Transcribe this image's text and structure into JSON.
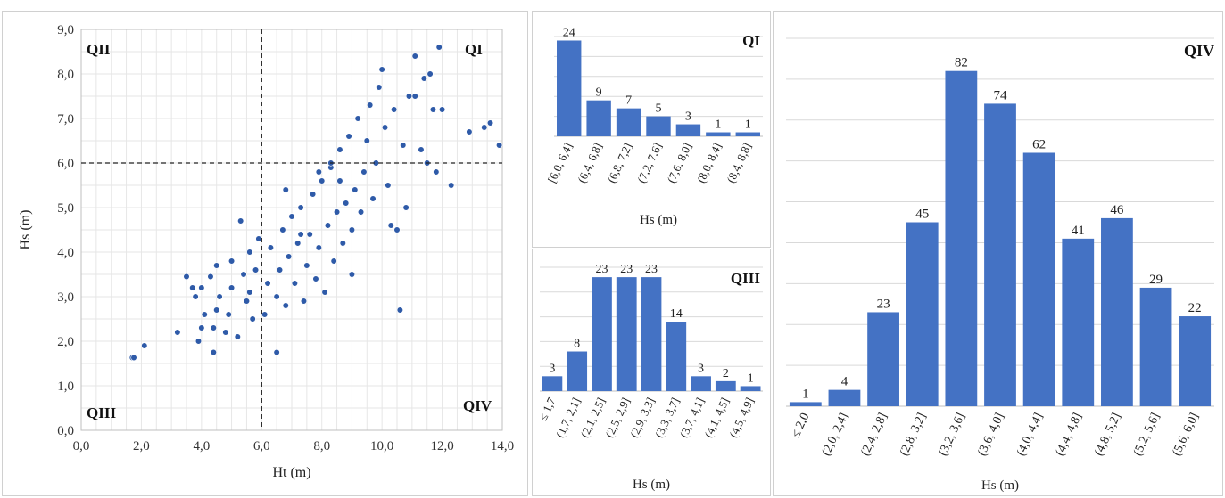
{
  "chart_data": [
    {
      "type": "scatter",
      "xlabel": "Ht (m)",
      "ylabel": "Hs (m)",
      "xlim": [
        0,
        14
      ],
      "ylim": [
        0,
        9
      ],
      "xticks": [
        "0,0",
        "2,0",
        "4,0",
        "6,0",
        "8,0",
        "10,0",
        "12,0",
        "14,0"
      ],
      "yticks": [
        "0,0",
        "1,0",
        "2,0",
        "3,0",
        "4,0",
        "5,0",
        "6,0",
        "7,0",
        "8,0",
        "9,0"
      ],
      "quadrant_labels": {
        "top_left": "QII",
        "top_right": "QI",
        "bottom_left": "QIII",
        "bottom_right": "QIV"
      },
      "threshold_x": 6.0,
      "threshold_y": 6.0,
      "grid": true,
      "marker_color": "#2e5aa8",
      "points": [
        [
          1.7,
          1.63
        ],
        [
          1.75,
          1.63
        ],
        [
          2.1,
          1.9
        ],
        [
          3.2,
          2.2
        ],
        [
          3.5,
          3.45
        ],
        [
          3.7,
          3.2
        ],
        [
          3.8,
          3.0
        ],
        [
          3.9,
          2.0
        ],
        [
          4.0,
          2.3
        ],
        [
          4.1,
          2.6
        ],
        [
          4.0,
          3.2
        ],
        [
          4.3,
          3.45
        ],
        [
          4.4,
          1.75
        ],
        [
          4.4,
          2.3
        ],
        [
          4.5,
          2.7
        ],
        [
          4.6,
          3.0
        ],
        [
          4.5,
          3.7
        ],
        [
          4.8,
          2.2
        ],
        [
          4.9,
          2.6
        ],
        [
          5.0,
          3.2
        ],
        [
          5.0,
          3.8
        ],
        [
          5.2,
          2.1
        ],
        [
          5.3,
          4.7
        ],
        [
          5.4,
          3.5
        ],
        [
          5.5,
          2.9
        ],
        [
          5.6,
          3.1
        ],
        [
          5.6,
          4.0
        ],
        [
          5.7,
          2.5
        ],
        [
          5.8,
          3.6
        ],
        [
          5.9,
          4.3
        ],
        [
          6.1,
          2.6
        ],
        [
          6.2,
          3.3
        ],
        [
          6.3,
          4.1
        ],
        [
          6.5,
          1.75
        ],
        [
          6.5,
          3.0
        ],
        [
          6.6,
          3.6
        ],
        [
          6.7,
          4.5
        ],
        [
          6.8,
          2.8
        ],
        [
          6.9,
          3.9
        ],
        [
          7.0,
          4.8
        ],
        [
          7.1,
          3.3
        ],
        [
          7.2,
          4.2
        ],
        [
          7.3,
          5.0
        ],
        [
          7.4,
          2.9
        ],
        [
          7.5,
          3.7
        ],
        [
          7.6,
          4.4
        ],
        [
          7.7,
          5.3
        ],
        [
          7.8,
          3.4
        ],
        [
          7.9,
          4.1
        ],
        [
          8.0,
          5.6
        ],
        [
          8.1,
          3.1
        ],
        [
          8.2,
          4.6
        ],
        [
          8.3,
          5.9
        ],
        [
          8.4,
          3.8
        ],
        [
          8.5,
          4.9
        ],
        [
          8.6,
          6.3
        ],
        [
          8.7,
          4.2
        ],
        [
          8.8,
          5.1
        ],
        [
          8.9,
          6.6
        ],
        [
          9.0,
          4.5
        ],
        [
          9.1,
          5.4
        ],
        [
          9.2,
          7.0
        ],
        [
          9.3,
          4.9
        ],
        [
          9.4,
          5.8
        ],
        [
          9.5,
          6.5
        ],
        [
          9.6,
          7.3
        ],
        [
          9.7,
          5.2
        ],
        [
          9.8,
          6.0
        ],
        [
          9.9,
          7.7
        ],
        [
          10.0,
          8.1
        ],
        [
          10.1,
          6.8
        ],
        [
          10.2,
          5.5
        ],
        [
          10.3,
          4.6
        ],
        [
          10.4,
          7.2
        ],
        [
          10.5,
          4.5
        ],
        [
          10.6,
          2.7
        ],
        [
          10.7,
          6.4
        ],
        [
          10.8,
          5.0
        ],
        [
          10.9,
          7.5
        ],
        [
          11.1,
          8.4
        ],
        [
          11.1,
          7.5
        ],
        [
          11.3,
          6.3
        ],
        [
          11.4,
          7.9
        ],
        [
          11.5,
          6.0
        ],
        [
          11.6,
          8.0
        ],
        [
          11.7,
          7.2
        ],
        [
          11.8,
          5.8
        ],
        [
          11.9,
          8.6
        ],
        [
          12.0,
          7.2
        ],
        [
          12.3,
          5.5
        ],
        [
          12.9,
          6.7
        ],
        [
          13.4,
          6.8
        ],
        [
          13.6,
          6.9
        ],
        [
          13.9,
          6.4
        ],
        [
          9.0,
          3.5
        ],
        [
          8.6,
          5.6
        ],
        [
          7.9,
          5.8
        ],
        [
          8.3,
          6.0
        ],
        [
          6.8,
          5.4
        ],
        [
          7.3,
          4.4
        ]
      ]
    },
    {
      "type": "bar",
      "quadrant": "QI",
      "xlabel": "Hs (m)",
      "categories": [
        "[6,0, 6,4]",
        "(6,4, 6,8]",
        "(6,8, 7,2]",
        "(7,2, 7,6]",
        "(7,6, 8,0]",
        "(8,0, 8,4]",
        "(8,4, 8,8]"
      ],
      "values": [
        24,
        9,
        7,
        5,
        3,
        1,
        1
      ],
      "ylim": [
        0,
        25
      ],
      "bar_color": "#4472c4"
    },
    {
      "type": "bar",
      "quadrant": "QIII",
      "xlabel": "Hs (m)",
      "categories": [
        "≤ 1,7",
        "(1,7, 2,1]",
        "(2,1, 2,5]",
        "(2,5, 2,9]",
        "(2,9, 3,3]",
        "(3,3, 3,7]",
        "(3,7, 4,1]",
        "(4,1, 4,5]",
        "(4,5, 4,9]"
      ],
      "values": [
        3,
        8,
        23,
        23,
        23,
        14,
        3,
        2,
        1
      ],
      "ylim": [
        0,
        25
      ],
      "bar_color": "#4472c4"
    },
    {
      "type": "bar",
      "quadrant": "QIV",
      "xlabel": "Hs (m)",
      "categories": [
        "≤ 2,0",
        "(2,0, 2,4]",
        "(2,4, 2,8]",
        "(2,8, 3,2]",
        "(3,2, 3,6]",
        "(3,6, 4,0]",
        "(4,0, 4,4]",
        "(4,4, 4,8]",
        "(4,8, 5,2]",
        "(5,2, 5,6]",
        "(5,6, 6,0]"
      ],
      "values": [
        1,
        4,
        23,
        45,
        82,
        74,
        62,
        41,
        46,
        29,
        22
      ],
      "ylim": [
        0,
        90
      ],
      "bar_color": "#4472c4"
    }
  ]
}
